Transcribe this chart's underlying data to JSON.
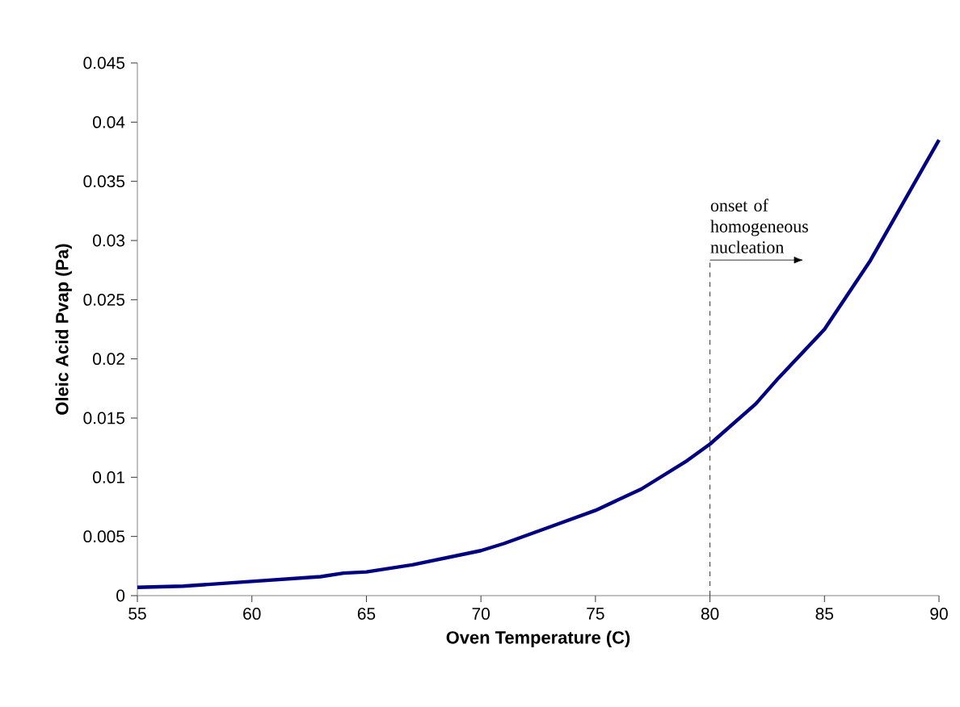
{
  "chart_data": {
    "type": "line",
    "xlabel": "Oven Temperature (C)",
    "ylabel": "Oleic Acid Pvap (Pa)",
    "x": [
      55,
      57,
      60,
      63,
      64,
      65,
      67,
      70,
      71,
      73,
      75,
      77,
      79,
      80,
      82,
      83,
      85,
      87,
      88,
      90
    ],
    "series": [
      {
        "color": "#000080",
        "values": [
          0.0007,
          0.0008,
          0.0012,
          0.0016,
          0.0019,
          0.002,
          0.0026,
          0.0038,
          0.0044,
          0.0058,
          0.0072,
          0.009,
          0.0114,
          0.0128,
          0.0162,
          0.0184,
          0.0225,
          0.0283,
          0.0317,
          0.0385
        ]
      }
    ],
    "xlim": [
      55,
      90
    ],
    "xticks": [
      55,
      60,
      65,
      70,
      75,
      80,
      85,
      90
    ],
    "ylim": [
      0,
      0.045
    ],
    "yticks": [
      0,
      0.005,
      0.01,
      0.015,
      0.02,
      0.025,
      0.03,
      0.035,
      0.04,
      0.045
    ],
    "marker": "none",
    "line_style": "solid",
    "ref_lines": [
      {
        "axis": "x",
        "value": 80,
        "line_style": "dashed",
        "label": "onset of homogeneous nucleation"
      }
    ]
  }
}
